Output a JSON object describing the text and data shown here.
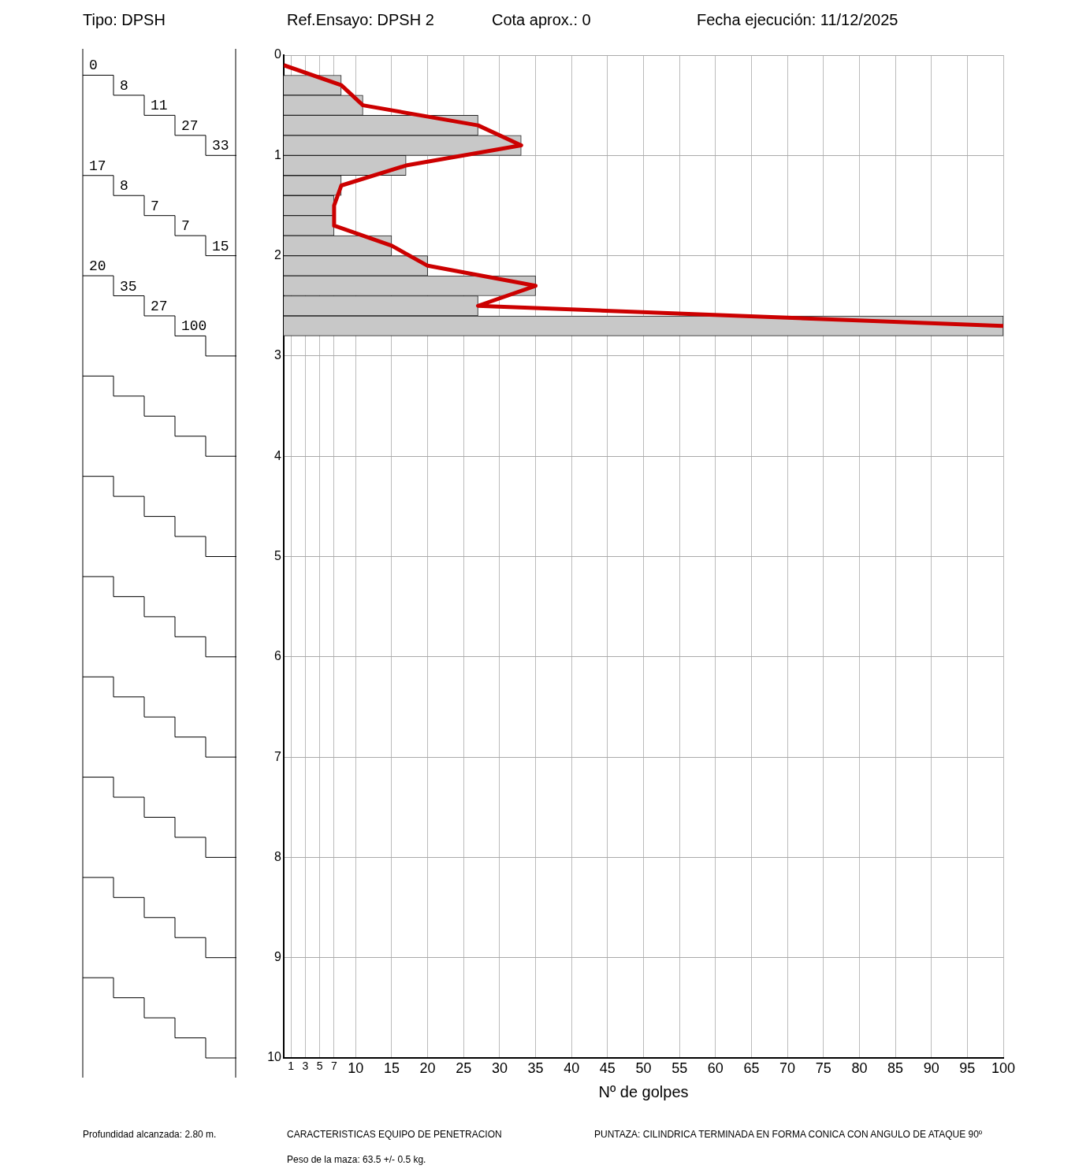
{
  "chart_data": [
    {
      "type": "other",
      "annotations": [
        "0",
        "8",
        "11",
        "27",
        "33",
        "17",
        "8",
        "7",
        "7",
        "15",
        "20",
        "35",
        "27",
        "100"
      ]
    },
    {
      "type": "bar",
      "orientation": "horizontal",
      "xlabel": "Nº de golpes",
      "annotations": [
        "Tipo: DPSH",
        "Ref.Ensayo: DPSH 2",
        "Cota aprox.: 0",
        "Fecha ejecución: 11/12/2025",
        "Profundidad alcanzada: 2.80 m.",
        "CARACTERISTICAS EQUIPO DE PENETRACION",
        "PUNTAZA: CILINDRICA TERMINADA EN FORMA CONICA CON ANGULO DE ATAQUE 90º",
        "Peso de la maza: 63.5 +/- 0.5 kg."
      ],
      "x": [
        0.1,
        0.3,
        0.5,
        0.7,
        0.9,
        1.1,
        1.3,
        1.5,
        1.7,
        1.9,
        2.1,
        2.3,
        2.5,
        2.7
      ],
      "series": [
        {
          "type": "bar",
          "color": "#c8c8c8",
          "values": [
            0,
            8,
            11,
            27,
            33,
            17,
            8,
            7,
            7,
            15,
            20,
            35,
            27,
            100
          ]
        },
        {
          "type": "line",
          "color": "#cc0000",
          "values": [
            0,
            8,
            11,
            27,
            33,
            17,
            8,
            7,
            7,
            15,
            20,
            35,
            27,
            100
          ]
        }
      ],
      "xlim": [
        0,
        100
      ],
      "xticks": [
        1,
        3,
        5,
        7,
        10,
        15,
        20,
        25,
        30,
        35,
        40,
        45,
        50,
        55,
        60,
        65,
        70,
        75,
        80,
        85,
        90,
        95,
        100
      ],
      "ylim": [
        10,
        0
      ],
      "yticks": [
        0,
        1,
        2,
        3,
        4,
        5,
        6,
        7,
        8,
        9,
        10
      ],
      "grid": true,
      "legend": false,
      "marker": "none",
      "line_style": "solid"
    }
  ]
}
